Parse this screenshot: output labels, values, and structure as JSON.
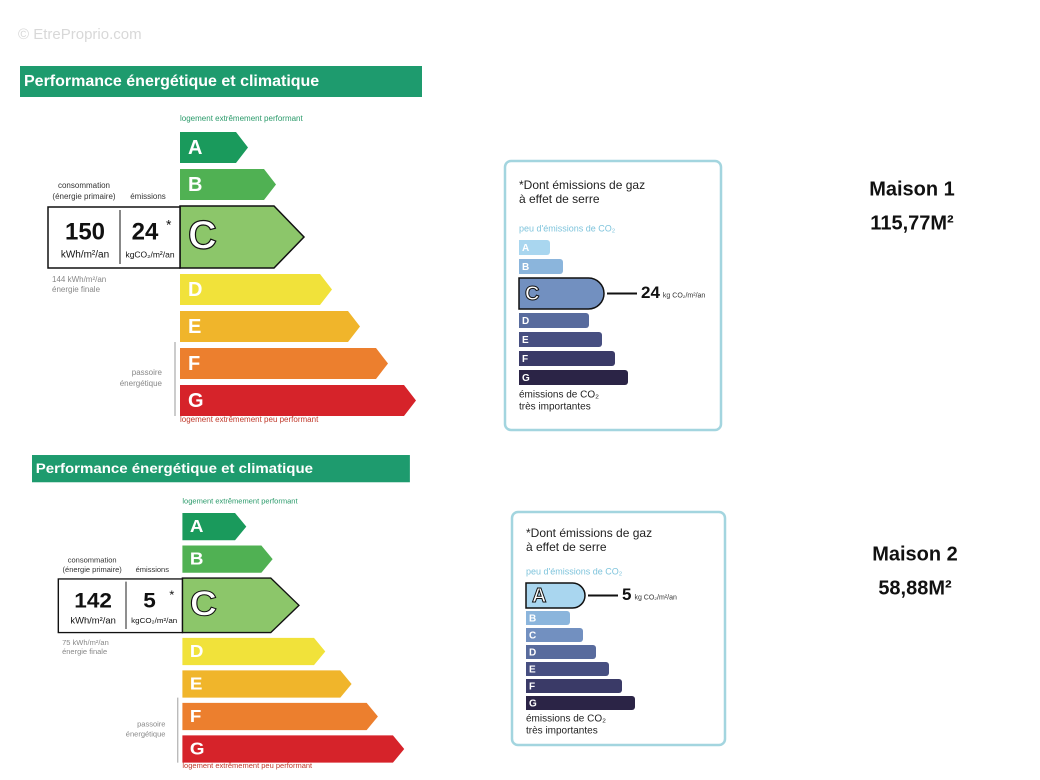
{
  "watermark": "© EtreProprio.com",
  "listings": [
    {
      "name": "Maison 1",
      "area": "115,77M²",
      "dpe": {
        "title": "Performance énergétique et climatique",
        "top_label": "logement extrêmement performant",
        "bottom_label": "logement extrêmement peu performant",
        "grades": [
          {
            "letter": "A"
          },
          {
            "letter": "B"
          },
          {
            "letter": "C",
            "selected": true
          },
          {
            "letter": "D"
          },
          {
            "letter": "E"
          },
          {
            "letter": "F"
          },
          {
            "letter": "G"
          }
        ],
        "consumption_label": [
          "consommation",
          "(énergie primaire)"
        ],
        "emissions_label": "émissions",
        "consumption_value": "150",
        "consumption_unit": "kWh/m²/an",
        "emissions_value": "24",
        "emissions_mark": "*",
        "emissions_unit": "kgCO₂/m²/an",
        "final_energy": [
          "144 kWh/m²/an",
          "énergie finale"
        ],
        "passoire": [
          "passoire",
          "énergétique"
        ]
      },
      "ges": {
        "note": [
          "*Dont émissions de gaz",
          "à effet de serre"
        ],
        "top_label": "peu d'émissions de CO₂",
        "grades": [
          {
            "letter": "A"
          },
          {
            "letter": "B"
          },
          {
            "letter": "C",
            "selected": true
          },
          {
            "letter": "D"
          },
          {
            "letter": "E"
          },
          {
            "letter": "F"
          },
          {
            "letter": "G"
          }
        ],
        "value": "24",
        "unit": "kg CO₂/m²/an",
        "bottom_label": [
          "émissions de CO₂",
          "très importantes"
        ]
      }
    },
    {
      "name": "Maison 2",
      "area": "58,88M²",
      "dpe": {
        "title": "Performance énergétique et climatique",
        "top_label": "logement extrêmement performant",
        "bottom_label": "logement extrêmement peu performant",
        "grades": [
          {
            "letter": "A"
          },
          {
            "letter": "B"
          },
          {
            "letter": "C",
            "selected": true
          },
          {
            "letter": "D"
          },
          {
            "letter": "E"
          },
          {
            "letter": "F"
          },
          {
            "letter": "G"
          }
        ],
        "consumption_label": [
          "consommation",
          "(énergie primaire)"
        ],
        "emissions_label": "émissions",
        "consumption_value": "142",
        "consumption_unit": "kWh/m²/an",
        "emissions_value": "5",
        "emissions_mark": "*",
        "emissions_unit": "kgCO₂/m²/an",
        "final_energy": [
          "75 kWh/m²/an",
          "énergie finale"
        ],
        "passoire": [
          "passoire",
          "énergétique"
        ]
      },
      "ges": {
        "note": [
          "*Dont émissions de gaz",
          "à effet de serre"
        ],
        "top_label": "peu d'émissions de CO₂",
        "grades": [
          {
            "letter": "A",
            "selected": true
          },
          {
            "letter": "B"
          },
          {
            "letter": "C"
          },
          {
            "letter": "D"
          },
          {
            "letter": "E"
          },
          {
            "letter": "F"
          },
          {
            "letter": "G"
          }
        ],
        "value": "5",
        "unit": "kg CO₂/m²/an",
        "bottom_label": [
          "émissions de CO₂",
          "très importantes"
        ]
      }
    }
  ]
}
